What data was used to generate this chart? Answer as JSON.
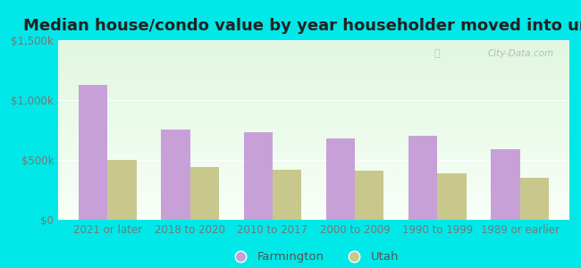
{
  "title": "Median house/condo value by year householder moved into unit",
  "categories": [
    "2021 or later",
    "2018 to 2020",
    "2010 to 2017",
    "2000 to 2009",
    "1990 to 1999",
    "1989 or earlier"
  ],
  "farmington_values": [
    1130000,
    750000,
    730000,
    680000,
    700000,
    590000
  ],
  "utah_values": [
    500000,
    440000,
    415000,
    410000,
    390000,
    350000
  ],
  "farmington_color": "#c8a0d8",
  "utah_color": "#c8c88c",
  "background_outer": "#00e8e8",
  "ylim": [
    0,
    1500000
  ],
  "yticks": [
    0,
    500000,
    1000000,
    1500000
  ],
  "ytick_labels": [
    "$0",
    "$500k",
    "$1,000k",
    "$1,500k"
  ],
  "watermark": "City-Data.com",
  "legend_labels": [
    "Farmington",
    "Utah"
  ],
  "bar_width": 0.35,
  "title_fontsize": 13,
  "tick_fontsize": 8.5,
  "legend_fontsize": 9.5
}
